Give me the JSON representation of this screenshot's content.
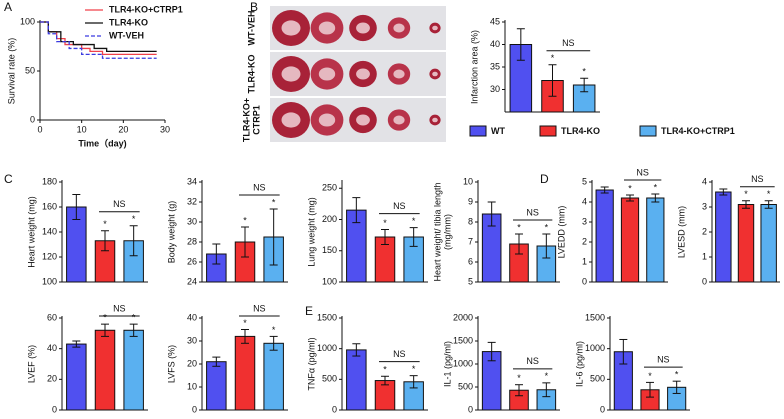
{
  "chart_data": [
    {
      "type": "survival",
      "panel": "A",
      "ylabel": [
        "Survival rate (%)"
      ],
      "xlabel": "Time（day)",
      "xlim": [
        0,
        30
      ],
      "xticks": [
        0,
        10,
        20,
        30
      ],
      "ylim": [
        0,
        100
      ],
      "yticks": [
        0,
        50,
        100
      ],
      "legend": "upper right",
      "series": [
        {
          "name": "TLR4-KO+CTRP1",
          "color": "#f0404a",
          "dash": false,
          "x": [
            0,
            2,
            4,
            6,
            10,
            12,
            15,
            28
          ],
          "values": [
            100,
            90,
            83,
            77,
            73,
            70,
            67,
            67
          ]
        },
        {
          "name": "TLR4-KO",
          "color": "#111111",
          "dash": false,
          "x": [
            0,
            2,
            5,
            8,
            13,
            16,
            28
          ],
          "values": [
            100,
            90,
            80,
            77,
            73,
            70,
            70
          ]
        },
        {
          "name": "WT-VEH",
          "color": "#3a3ae0",
          "dash": true,
          "x": [
            0,
            2,
            4,
            7,
            10,
            15,
            28
          ],
          "values": [
            100,
            88,
            80,
            73,
            67,
            63,
            63
          ]
        }
      ]
    },
    {
      "type": "bar",
      "panel": "B",
      "image_labels": [
        [
          "WT-VEH"
        ],
        [
          "TLR4-KO"
        ],
        [
          "TLR4-KO+",
          "CTRP1"
        ]
      ],
      "ylabel": [
        "Infarction area (%)"
      ],
      "ylim": [
        25,
        45
      ],
      "yticks": [
        30,
        35,
        40,
        45
      ],
      "values": [
        40,
        32,
        31
      ],
      "errors": [
        3.5,
        3.5,
        1.5
      ],
      "colors": [
        "#5050f0",
        "#f03030",
        "#5ab0f0"
      ],
      "annotations": [
        "NS",
        "*",
        "*"
      ],
      "legend": [
        "WT",
        "TLR4-KO",
        "TLR4-KO+CTRP1"
      ]
    },
    {
      "type": "bar",
      "panel": "C",
      "ylabel": [
        "Heart weight (mg)"
      ],
      "ylim": [
        100,
        180
      ],
      "yticks": [
        100,
        120,
        140,
        160,
        180
      ],
      "values": [
        160,
        133,
        133
      ],
      "errors": [
        10,
        8,
        12
      ],
      "colors": [
        "#5050f0",
        "#f03030",
        "#5ab0f0"
      ],
      "annotations": [
        "NS",
        "*",
        "*"
      ]
    },
    {
      "type": "bar",
      "ylabel": [
        "Body weight (g)"
      ],
      "ylim": [
        24,
        34
      ],
      "yticks": [
        24,
        26,
        28,
        30,
        32,
        34
      ],
      "values": [
        26.8,
        28,
        28.5
      ],
      "errors": [
        1,
        1.5,
        2.8
      ],
      "colors": [
        "#5050f0",
        "#f03030",
        "#5ab0f0"
      ],
      "annotations": [
        "NS",
        "*",
        "*"
      ]
    },
    {
      "type": "bar",
      "ylabel": [
        "Lung weight (mg)"
      ],
      "ylim": [
        100,
        260
      ],
      "yticks": [
        100,
        150,
        200,
        250
      ],
      "values": [
        215,
        172,
        172
      ],
      "errors": [
        20,
        12,
        15
      ],
      "colors": [
        "#5050f0",
        "#f03030",
        "#5ab0f0"
      ],
      "annotations": [
        "NS",
        "*",
        "*"
      ]
    },
    {
      "type": "bar",
      "ylabel": [
        "Heart weight/ tibia length",
        "(mg/mm)"
      ],
      "ylim": [
        5,
        10
      ],
      "yticks": [
        5,
        6,
        7,
        8,
        9,
        10
      ],
      "values": [
        8.4,
        6.9,
        6.8
      ],
      "errors": [
        0.6,
        0.5,
        0.6
      ],
      "colors": [
        "#5050f0",
        "#f03030",
        "#5ab0f0"
      ],
      "annotations": [
        "NS",
        "*",
        "*"
      ]
    },
    {
      "type": "bar",
      "panel": "D",
      "ylabel": [
        "LVEDD (mm)"
      ],
      "ylim": [
        0,
        5
      ],
      "yticks": [
        0,
        1,
        2,
        3,
        4,
        5
      ],
      "values": [
        4.6,
        4.2,
        4.2
      ],
      "errors": [
        0.15,
        0.15,
        0.2
      ],
      "colors": [
        "#5050f0",
        "#f03030",
        "#5ab0f0"
      ],
      "annotations": [
        "NS",
        "*",
        "*"
      ]
    },
    {
      "type": "bar",
      "ylabel": [
        "LVESD (mm)"
      ],
      "ylim": [
        0,
        4
      ],
      "yticks": [
        0,
        1,
        2,
        3,
        4
      ],
      "values": [
        3.6,
        3.1,
        3.1
      ],
      "errors": [
        0.12,
        0.15,
        0.15
      ],
      "colors": [
        "#5050f0",
        "#f03030",
        "#5ab0f0"
      ],
      "annotations": [
        "NS",
        "*",
        "*"
      ]
    },
    {
      "type": "bar",
      "ylabel": [
        "LVEF (%)"
      ],
      "ylim": [
        0,
        60
      ],
      "yticks": [
        0,
        20,
        40,
        60
      ],
      "values": [
        43,
        52,
        52
      ],
      "errors": [
        2,
        4,
        4
      ],
      "colors": [
        "#5050f0",
        "#f03030",
        "#5ab0f0"
      ],
      "annotations": [
        "NS",
        "*",
        "*"
      ]
    },
    {
      "type": "bar",
      "ylabel": [
        "LVFS (%)"
      ],
      "ylim": [
        0,
        40
      ],
      "yticks": [
        0,
        10,
        20,
        30,
        40
      ],
      "values": [
        21,
        32,
        29
      ],
      "errors": [
        2,
        3,
        3
      ],
      "colors": [
        "#5050f0",
        "#f03030",
        "#5ab0f0"
      ],
      "annotations": [
        "NS",
        "*",
        "*"
      ]
    },
    {
      "type": "bar",
      "panel": "E",
      "ylabel": [
        "TNFα (pg/ml)"
      ],
      "ylim": [
        0,
        1500
      ],
      "yticks": [
        0,
        500,
        1000,
        1500
      ],
      "values": [
        980,
        480,
        460
      ],
      "errors": [
        100,
        70,
        100
      ],
      "colors": [
        "#5050f0",
        "#f03030",
        "#5ab0f0"
      ],
      "annotations": [
        "NS",
        "*",
        "*"
      ]
    },
    {
      "type": "bar",
      "ylabel": [
        "IL-1 (pg/ml)"
      ],
      "ylim": [
        0,
        2000
      ],
      "yticks": [
        0,
        500,
        1000,
        1500,
        2000
      ],
      "values": [
        1270,
        430,
        440
      ],
      "errors": [
        200,
        120,
        150
      ],
      "colors": [
        "#5050f0",
        "#f03030",
        "#5ab0f0"
      ],
      "annotations": [
        "NS",
        "*",
        "*"
      ]
    },
    {
      "type": "bar",
      "ylabel": [
        "IL-6 (pg/ml)"
      ],
      "ylim": [
        0,
        1500
      ],
      "yticks": [
        0,
        500,
        1000,
        1500
      ],
      "values": [
        950,
        330,
        370
      ],
      "errors": [
        200,
        120,
        100
      ],
      "colors": [
        "#5050f0",
        "#f03030",
        "#5ab0f0"
      ],
      "annotations": [
        "NS",
        "*",
        "*"
      ]
    }
  ]
}
